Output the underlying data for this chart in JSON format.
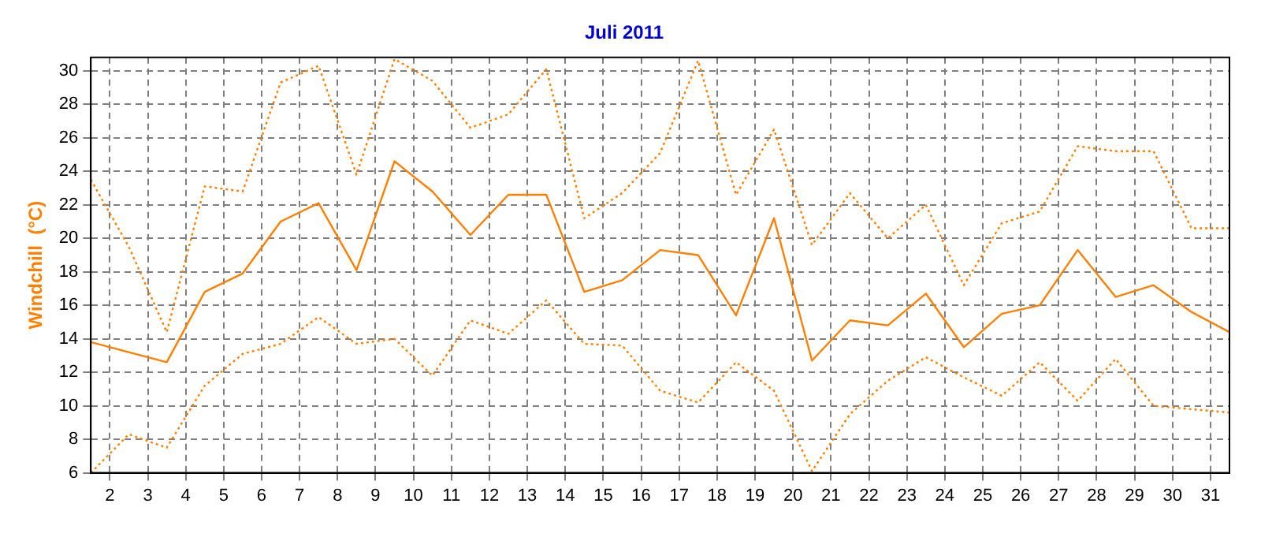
{
  "chart_data": {
    "type": "line",
    "title": "Juli 2011",
    "ylabel": "Windchill  (°C)",
    "x": [
      1.5,
      2.5,
      3.5,
      4.5,
      5.5,
      6.5,
      7.5,
      8.5,
      9.5,
      10.5,
      11.5,
      12.5,
      13.5,
      14.5,
      15.5,
      16.5,
      17.5,
      18.5,
      19.5,
      20.5,
      21.5,
      22.5,
      23.5,
      24.5,
      25.5,
      26.5,
      27.5,
      28.5,
      29.5,
      30.5,
      31.5
    ],
    "series": [
      {
        "color": "#ff8000",
        "line_style": "dotted",
        "values": [
          23.5,
          19.5,
          14.4,
          23.1,
          22.8,
          29.3,
          30.3,
          23.8,
          30.7,
          29.4,
          26.6,
          27.4,
          30.1,
          21.2,
          22.7,
          25.1,
          30.6,
          22.6,
          26.5,
          19.6,
          22.7,
          20.0,
          22.0,
          17.2,
          20.9,
          21.6,
          25.5,
          25.2,
          25.2,
          20.6,
          20.6
        ]
      },
      {
        "color": "#ff8000",
        "line_style": "solid",
        "values": [
          13.8,
          13.2,
          12.6,
          16.8,
          17.9,
          21.0,
          22.1,
          18.1,
          24.6,
          22.8,
          20.2,
          22.6,
          22.6,
          16.8,
          17.5,
          19.3,
          19.0,
          15.4,
          21.2,
          12.7,
          15.1,
          14.8,
          16.7,
          13.5,
          15.5,
          16.0,
          19.3,
          16.5,
          17.2,
          15.6,
          14.4
        ]
      },
      {
        "color": "#ff8000",
        "line_style": "dotted",
        "values": [
          6.0,
          8.3,
          7.5,
          11.2,
          13.1,
          13.7,
          15.3,
          13.7,
          14.0,
          11.8,
          15.1,
          14.3,
          16.3,
          13.7,
          13.6,
          10.9,
          10.2,
          12.6,
          10.9,
          6.1,
          9.5,
          11.5,
          12.9,
          11.7,
          10.6,
          12.6,
          10.3,
          12.8,
          10.0,
          9.8,
          9.6
        ]
      }
    ],
    "xlim": [
      1.5,
      31.5
    ],
    "xticks": [
      2,
      3,
      4,
      5,
      6,
      7,
      8,
      9,
      10,
      11,
      12,
      13,
      14,
      15,
      16,
      17,
      18,
      19,
      20,
      21,
      22,
      23,
      24,
      25,
      26,
      27,
      28,
      29,
      30,
      31
    ],
    "ylim": [
      6,
      30.8
    ],
    "yticks": [
      6,
      8,
      10,
      12,
      14,
      16,
      18,
      20,
      22,
      24,
      26,
      28,
      30
    ],
    "grid": true,
    "legend": false,
    "marker": "none"
  }
}
